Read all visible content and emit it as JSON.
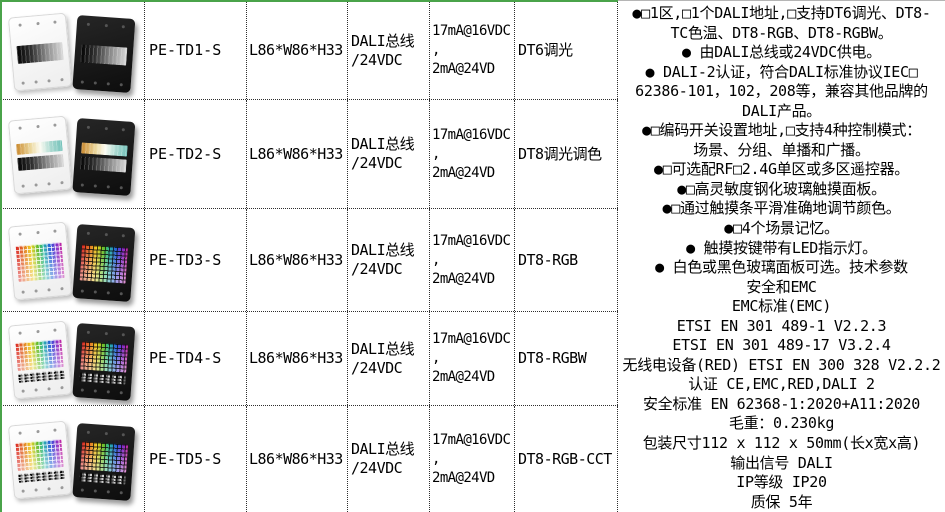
{
  "accent": {
    "green": "#4aa34a"
  },
  "products": [
    {
      "model": "PE-TD1-S",
      "size": "L86*W86*H33",
      "power": [
        "DALI总线",
        "/24VDC"
      ],
      "current": [
        "17mA@16VDC",
        ",",
        "2mA@24VD"
      ],
      "dali_type": "DT6调光",
      "panel": "single-dim-slider"
    },
    {
      "model": "PE-TD2-S",
      "size": "L86*W86*H33",
      "power": [
        "DALI总线",
        "/24VDC"
      ],
      "current": [
        "17mA@16VDC",
        ",",
        "2mA@24VD"
      ],
      "dali_type": "DT8调光调色",
      "panel": "cct-and-dim-sliders"
    },
    {
      "model": "PE-TD3-S",
      "size": "L86*W86*H33",
      "power": [
        "DALI总线",
        "/24VDC"
      ],
      "current": [
        "17mA@16VDC",
        ",",
        "2mA@24VD"
      ],
      "dali_type": "DT8-RGB",
      "panel": "rgb-color-grid"
    },
    {
      "model": "PE-TD4-S",
      "size": "L86*W86*H33",
      "power": [
        "DALI总线",
        "/24VDC"
      ],
      "current": [
        "17mA@16VDC",
        ",",
        "2mA@24VD"
      ],
      "dali_type": "DT8-RGBW",
      "panel": "rgb-grid-plus-dim-strip"
    },
    {
      "model": "PE-TD5-S",
      "size": "L86*W86*H33",
      "power": [
        "DALI总线",
        "/24VDC"
      ],
      "current": [
        "17mA@16VDC",
        ",",
        "2mA@24VD"
      ],
      "dali_type": "DT8-RGB-CCT",
      "panel": "rgb-grid-plus-dim-strip"
    }
  ],
  "description": {
    "lines": [
      "●□1区,□1个DALI地址,□支持DT6调光、DT8-",
      "TC色温、DT8-RGB、DT8-RGBW。",
      "● 由DALI总线或24VDC供电。",
      "● DALI-2认证，符合DALI标准协议IEC□",
      "62386-101，102，208等，兼容其他品牌的",
      "DALI产品。",
      "●□编码开关设置地址,□支持4种控制模式：",
      "场景、分组、单播和广播。",
      "●□可选配RF□2.4G单区或多区遥控器。",
      "●□高灵敏度钢化玻璃触摸面板。",
      "●□通过触摸条平滑准确地调节颜色。",
      "●□4个场景记忆。",
      "● 触摸按键带有LED指示灯。",
      "● 白色或黑色玻璃面板可选。技术参数",
      "安全和EMC",
      "EMC标准(EMC)",
      "ETSI EN 301 489-1 V2.2.3",
      "ETSI EN 301 489-17 V3.2.4",
      "无线电设备(RED) ETSI EN 300 328 V2.2.2",
      "认证 CE,EMC,RED,DALI 2",
      "安全标准 EN 62368-1:2020+A11:2020",
      "毛重：0.230kg",
      "包装尺寸112 x 112 x 50mm(长x宽x高)",
      "输出信号 DALI",
      "IP等级 IP20",
      "质保 5年"
    ]
  }
}
